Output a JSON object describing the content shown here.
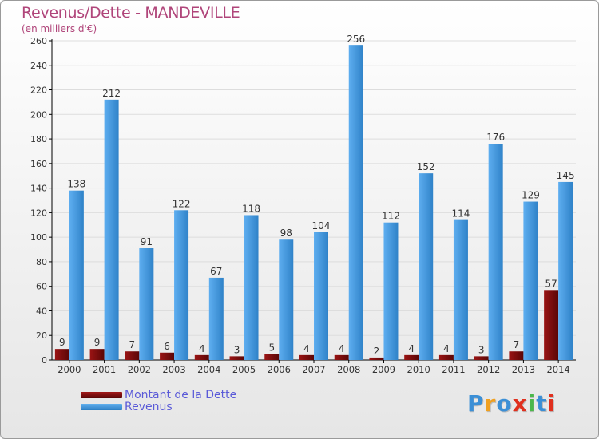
{
  "header": {
    "title": "Revenus/Dette - MANDEVILLE",
    "subtitle": "(en milliers d'€)"
  },
  "legend": {
    "items": [
      {
        "label": "Montant de la Dette",
        "color": "#7a0c0c"
      },
      {
        "label": "Revenus",
        "color": "#3d93da"
      }
    ]
  },
  "logo": {
    "letters": [
      "P",
      "r",
      "o",
      "x",
      "i",
      "t",
      "i"
    ],
    "colors": [
      "#3b8fd6",
      "#f0a020",
      "#3b8fd6",
      "#e0301e",
      "#4bb84b",
      "#3b8fd6",
      "#e0301e"
    ]
  },
  "colors": {
    "dette": "#7a0c0c",
    "revenus": "#3d93da",
    "label": "#333333",
    "axis": "#000000",
    "grid": "#dddddd"
  },
  "chart_data": {
    "type": "bar",
    "title": "Revenus/Dette - MANDEVILLE",
    "ylabel": "(en milliers d'€)",
    "xlabel": "",
    "ylim": [
      0,
      260
    ],
    "yticks": [
      0,
      20,
      40,
      60,
      80,
      100,
      120,
      140,
      160,
      180,
      200,
      220,
      240,
      260
    ],
    "grid": true,
    "categories": [
      "2000",
      "2001",
      "2002",
      "2003",
      "2004",
      "2005",
      "2006",
      "2007",
      "2008",
      "2009",
      "2010",
      "2011",
      "2012",
      "2013",
      "2014"
    ],
    "series": [
      {
        "name": "Montant de la Dette",
        "values": [
          9,
          9,
          7,
          6,
          4,
          3,
          5,
          4,
          4,
          2,
          4,
          4,
          3,
          7,
          57
        ]
      },
      {
        "name": "Revenus",
        "values": [
          138,
          212,
          91,
          122,
          67,
          118,
          98,
          104,
          256,
          112,
          152,
          114,
          176,
          129,
          145
        ]
      }
    ]
  }
}
